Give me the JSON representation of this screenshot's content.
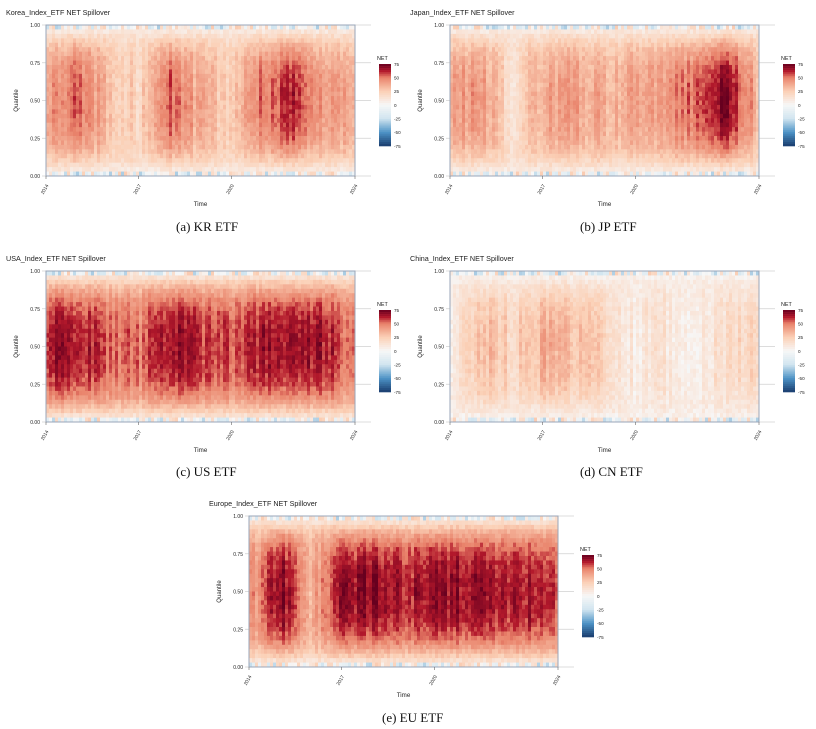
{
  "colors": {
    "neg_strong": "#1a3d6e",
    "neg_mid": "#4d93c6",
    "neg_light": "#d1e5f0",
    "neutral": "#f7f7f7",
    "pos_light": "#fbd0b6",
    "pos_mid": "#e9836b",
    "pos_strong": "#b2182b",
    "pos_max": "#67001f",
    "grid": "#d0d0d0",
    "frame": "#9aa6b8"
  },
  "chart_data": [
    {
      "id": "kr",
      "type": "heatmap",
      "title": "Korea_Index_ETF NET Spillover",
      "caption": "(a)  KR ETF",
      "xlabel": "Time",
      "ylabel": "Quantile",
      "x_ticks": [
        "2014",
        "2017",
        "2020",
        "2024"
      ],
      "y_ticks": [
        "0.00",
        "0.25",
        "0.50",
        "0.75",
        "1.00"
      ],
      "xlim": [
        2014,
        2024
      ],
      "ylim": [
        0,
        1
      ],
      "legend": {
        "title": "NET",
        "ticks": [
          "75",
          "50",
          "25",
          "0",
          "-25",
          "-50",
          "-75"
        ],
        "range": [
          -75,
          75
        ],
        "position": "right"
      },
      "profile": {
        "base": 22,
        "intensity": [
          40,
          58,
          30,
          22,
          55,
          35,
          25,
          50,
          62,
          45,
          38
        ]
      }
    },
    {
      "id": "jp",
      "type": "heatmap",
      "title": "Japan_Index_ETF NET Spillover",
      "caption": "(b)  JP ETF",
      "xlabel": "Time",
      "ylabel": "Quantile",
      "x_ticks": [
        "2014",
        "2017",
        "2020",
        "2024"
      ],
      "y_ticks": [
        "0.00",
        "0.25",
        "0.50",
        "0.75",
        "1.00"
      ],
      "xlim": [
        2014,
        2024
      ],
      "ylim": [
        0,
        1
      ],
      "legend": {
        "title": "NET",
        "ticks": [
          "75",
          "50",
          "25",
          "0",
          "-25",
          "-50",
          "-75"
        ],
        "range": [
          -75,
          75
        ],
        "position": "right"
      },
      "profile": {
        "base": 22,
        "intensity": [
          38,
          45,
          15,
          40,
          42,
          35,
          38,
          42,
          55,
          72,
          35
        ]
      }
    },
    {
      "id": "us",
      "type": "heatmap",
      "title": "USA_Index_ETF NET Spillover",
      "caption": "(c)  US ETF",
      "xlabel": "Time",
      "ylabel": "Quantile",
      "x_ticks": [
        "2014",
        "2017",
        "2020",
        "2024"
      ],
      "y_ticks": [
        "0.00",
        "0.25",
        "0.50",
        "0.75",
        "1.00"
      ],
      "xlim": [
        2014,
        2024
      ],
      "ylim": [
        0,
        1
      ],
      "legend": {
        "title": "NET",
        "ticks": [
          "75",
          "50",
          "25",
          "0",
          "-25",
          "-50",
          "-75"
        ],
        "range": [
          -75,
          75
        ],
        "position": "right"
      },
      "profile": {
        "base": 30,
        "intensity": [
          62,
          68,
          55,
          50,
          66,
          60,
          55,
          65,
          68,
          64,
          50
        ]
      }
    },
    {
      "id": "cn",
      "type": "heatmap",
      "title": "China_Index_ETF NET Spillover",
      "caption": "(d)  CN ETF",
      "xlabel": "Time",
      "ylabel": "Quantile",
      "x_ticks": [
        "2014",
        "2017",
        "2020",
        "2024"
      ],
      "y_ticks": [
        "0.00",
        "0.25",
        "0.50",
        "0.75",
        "1.00"
      ],
      "xlim": [
        2014,
        2024
      ],
      "ylim": [
        0,
        1
      ],
      "legend": {
        "title": "NET",
        "ticks": [
          "75",
          "50",
          "25",
          "0",
          "-25",
          "-50",
          "-75"
        ],
        "range": [
          -75,
          75
        ],
        "position": "right"
      },
      "profile": {
        "base": 12,
        "intensity": [
          10,
          32,
          22,
          35,
          30,
          22,
          8,
          12,
          5,
          18,
          20
        ]
      }
    },
    {
      "id": "eu",
      "type": "heatmap",
      "title": "Europe_Index_ETF NET Spillover",
      "caption": "(e)  EU ETF",
      "xlabel": "Time",
      "ylabel": "Quantile",
      "x_ticks": [
        "2014",
        "2017",
        "2020",
        "2024"
      ],
      "y_ticks": [
        "0.00",
        "0.25",
        "0.50",
        "0.75",
        "1.00"
      ],
      "xlim": [
        2014,
        2024
      ],
      "ylim": [
        0,
        1
      ],
      "legend": {
        "title": "NET",
        "ticks": [
          "75",
          "50",
          "25",
          "0",
          "-25",
          "-50",
          "-75"
        ],
        "range": [
          -75,
          75
        ],
        "position": "right"
      },
      "profile": {
        "base": 32,
        "intensity": [
          40,
          72,
          35,
          66,
          70,
          62,
          65,
          68,
          65,
          64,
          60
        ]
      }
    }
  ]
}
